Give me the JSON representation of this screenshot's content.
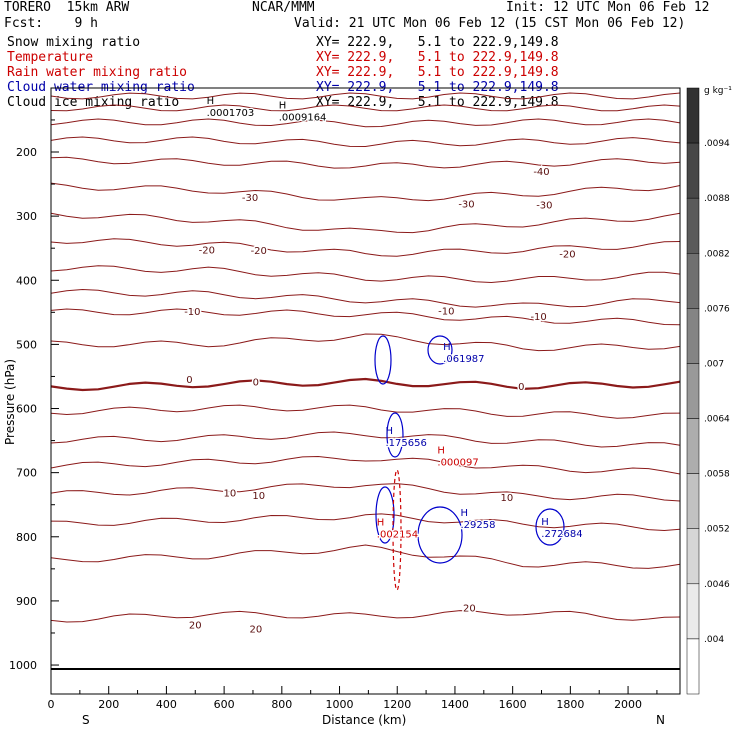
{
  "header": {
    "model": "TORERO  15km ARW",
    "center": "NCAR/MMM",
    "init": "Init: 12 UTC Mon 06 Feb 12",
    "fcst": "Fcst:    9 h",
    "valid": "Valid: 21 UTC Mon 06 Feb 12 (15 CST Mon 06 Feb 12)",
    "fields": [
      {
        "name": "Snow mixing ratio",
        "xy": "XY= 222.9,   5.1 to 222.9,149.8",
        "color": "#000000"
      },
      {
        "name": "Temperature",
        "xy": "XY= 222.9,   5.1 to 222.9,149.8",
        "color": "#cc0000"
      },
      {
        "name": "Rain water mixing ratio",
        "xy": "XY= 222.9,   5.1 to 222.9,149.8",
        "color": "#cc0000"
      },
      {
        "name": "Cloud water mixing ratio",
        "xy": "XY= 222.9,   5.1 to 222.9,149.8",
        "color": "#0000aa"
      },
      {
        "name": "Cloud ice mixing ratio",
        "xy": "XY= 222.9,   5.1 to 222.9,149.8",
        "color": "#000000"
      }
    ]
  },
  "chart_data": {
    "type": "contour",
    "xlabel": "Distance (km)",
    "ylabel": "Pressure (hPa)",
    "xlim": [
      0,
      2180
    ],
    "xticks": [
      0,
      200,
      400,
      600,
      800,
      1000,
      1200,
      1400,
      1600,
      1800,
      2000
    ],
    "yticks": [
      200,
      300,
      400,
      500,
      600,
      700,
      800,
      900,
      1000
    ],
    "left_label": "S",
    "right_label": "N",
    "temperature_labels": [
      {
        "text": "-40",
        "x": 1700,
        "p": 230
      },
      {
        "text": "-30",
        "x": 690,
        "p": 270
      },
      {
        "text": "-30",
        "x": 1440,
        "p": 280
      },
      {
        "text": "-30",
        "x": 1710,
        "p": 282
      },
      {
        "text": "-20",
        "x": 540,
        "p": 352
      },
      {
        "text": "-20",
        "x": 720,
        "p": 353
      },
      {
        "text": "-20",
        "x": 1790,
        "p": 358
      },
      {
        "text": "-10",
        "x": 490,
        "p": 448
      },
      {
        "text": "-10",
        "x": 1370,
        "p": 447
      },
      {
        "text": "-10",
        "x": 1690,
        "p": 456
      },
      {
        "text": "0",
        "x": 480,
        "p": 554
      },
      {
        "text": "0",
        "x": 710,
        "p": 558
      },
      {
        "text": "0",
        "x": 1630,
        "p": 565
      },
      {
        "text": "10",
        "x": 620,
        "p": 731
      },
      {
        "text": "10",
        "x": 720,
        "p": 735
      },
      {
        "text": "10",
        "x": 1580,
        "p": 738
      },
      {
        "text": "20",
        "x": 1450,
        "p": 910
      },
      {
        "text": "20",
        "x": 500,
        "p": 937
      },
      {
        "text": "20",
        "x": 710,
        "p": 943
      }
    ],
    "max_labels": [
      {
        "text": ".0001703",
        "x": 560,
        "p": 141,
        "color": "#000000",
        "kind": "snow"
      },
      {
        "text": ".0009164",
        "x": 810,
        "p": 148,
        "color": "#000000",
        "kind": "ice"
      },
      {
        "text": ".061987",
        "x": 1380,
        "p": 524,
        "color": "#0000aa",
        "kind": "cloud water"
      },
      {
        "text": ".175656",
        "x": 1180,
        "p": 655,
        "color": "#0000aa",
        "kind": "cloud water"
      },
      {
        "text": ".000097",
        "x": 1360,
        "p": 686,
        "color": "#cc0000",
        "kind": "rain"
      },
      {
        "text": ".29258",
        "x": 1440,
        "p": 783,
        "color": "#0000aa",
        "kind": "cloud water"
      },
      {
        "text": ".002154",
        "x": 1150,
        "p": 798,
        "color": "#cc0000",
        "kind": "rain"
      },
      {
        "text": ".272684",
        "x": 1720,
        "p": 797,
        "color": "#0000aa",
        "kind": "cloud water"
      }
    ],
    "colorbar": {
      "unit": "g kg⁻¹",
      "ticks": [
        ".0094",
        ".0088",
        ".0082",
        ".0076",
        ".007",
        ".0064",
        ".0058",
        ".0052",
        ".0046",
        ".004"
      ]
    }
  }
}
